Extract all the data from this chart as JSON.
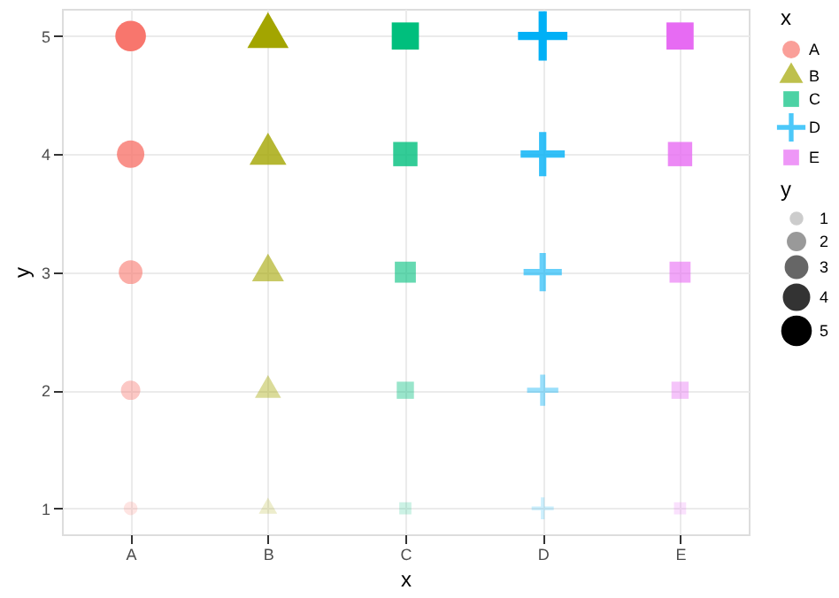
{
  "chart_data": {
    "type": "scatter",
    "xlabel": "x",
    "ylabel": "y",
    "legend_title": "x",
    "categories": [
      "A",
      "B",
      "C",
      "D",
      "E"
    ],
    "series": [
      {
        "name": "A",
        "color": "#f8766d",
        "marker": "circle",
        "x": [
          "A",
          "A",
          "A",
          "A",
          "A"
        ],
        "values": [
          1,
          2,
          3,
          4,
          5
        ],
        "sizes": [
          1,
          2,
          3,
          4,
          5
        ]
      },
      {
        "name": "B",
        "color": "#a3a500",
        "marker": "triangle",
        "x": [
          "B",
          "B",
          "B",
          "B",
          "B"
        ],
        "values": [
          1,
          2,
          3,
          4,
          5
        ],
        "sizes": [
          1,
          2,
          3,
          4,
          5
        ]
      },
      {
        "name": "C",
        "color": "#00bf7d",
        "marker": "square",
        "x": [
          "C",
          "C",
          "C",
          "C",
          "C"
        ],
        "values": [
          1,
          2,
          3,
          4,
          5
        ],
        "sizes": [
          1,
          2,
          3,
          4,
          5
        ]
      },
      {
        "name": "D",
        "color": "#00b0f6",
        "marker": "cross",
        "x": [
          "D",
          "D",
          "D",
          "D",
          "D"
        ],
        "values": [
          1,
          2,
          3,
          4,
          5
        ],
        "sizes": [
          1,
          2,
          3,
          4,
          5
        ]
      },
      {
        "name": "E",
        "color": "#e76bf3",
        "marker": "square",
        "x": [
          "E",
          "E",
          "E",
          "E",
          "E"
        ],
        "values": [
          1,
          2,
          3,
          4,
          5
        ],
        "sizes": [
          1,
          2,
          3,
          4,
          5
        ]
      }
    ],
    "size_legend": [
      1,
      2,
      3,
      4,
      5
    ],
    "ylim": [
      0.78,
      5.23
    ],
    "yticks": [
      1,
      2,
      3,
      4,
      5
    ],
    "grid": true,
    "legend": "right"
  }
}
